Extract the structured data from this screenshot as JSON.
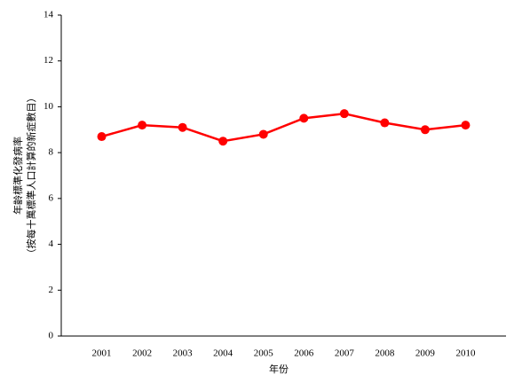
{
  "chart_data": {
    "type": "line",
    "x_label": "年份",
    "y_label": [
      "年齡標準化發病率",
      "（按每十萬標準人口計算的新症數目）"
    ],
    "categories": [
      "2001",
      "2002",
      "2003",
      "2004",
      "2005",
      "2006",
      "2007",
      "2008",
      "2009",
      "2010"
    ],
    "series": [
      {
        "color": "#ff0000",
        "values": [
          8.7,
          9.2,
          9.1,
          8.5,
          8.8,
          9.5,
          9.7,
          9.3,
          9.0,
          9.2
        ]
      }
    ],
    "ylim": [
      0,
      14
    ],
    "yticks": [
      0,
      2,
      4,
      6,
      8,
      10,
      12,
      14
    ],
    "grid": false
  }
}
